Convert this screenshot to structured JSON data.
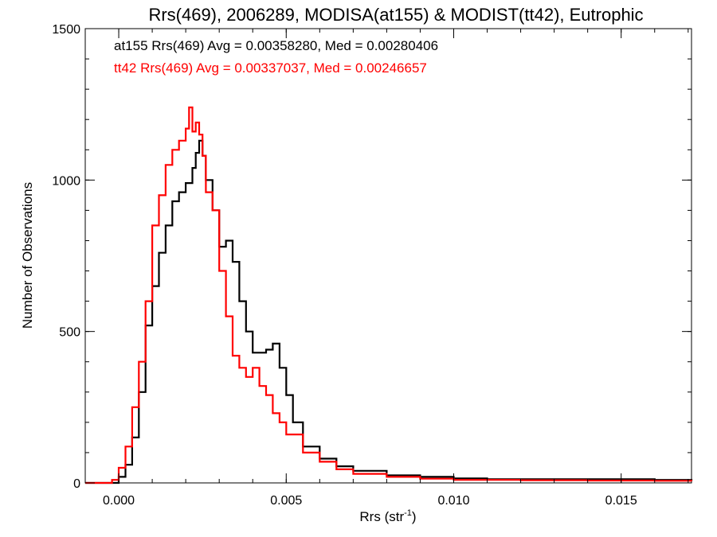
{
  "chart_data": {
    "type": "line",
    "title": "Rrs(469), 2006289, MODISA(at155) & MODIST(tt42), Eutrophic",
    "xlabel": "Rrs (str",
    "xlabel_sup": "-1",
    "xlabel_close": ")",
    "ylabel": "Number of Observations",
    "xlim": [
      -0.001,
      0.0171
    ],
    "ylim": [
      0,
      1500
    ],
    "xticks": [
      0.0,
      0.005,
      0.01,
      0.015
    ],
    "xtick_labels": [
      "0.000",
      "0.005",
      "0.010",
      "0.015"
    ],
    "yticks": [
      0,
      500,
      1000,
      1500
    ],
    "ytick_labels": [
      "0",
      "500",
      "1000",
      "1500"
    ],
    "grid": false,
    "legend_placement": "top-left",
    "annotations": [
      {
        "text": "at155 Rrs(469) Avg = 0.00358280, Med = 0.00280406",
        "color": "#000000"
      },
      {
        "text": "tt42 Rrs(469) Avg = 0.00337037, Med = 0.00246657",
        "color": "#ff0000"
      }
    ],
    "series": [
      {
        "name": "at155",
        "color": "#000000",
        "x": [
          -0.001,
          -0.0002,
          0.0,
          0.0002,
          0.0004,
          0.0006,
          0.0008,
          0.001,
          0.0012,
          0.0014,
          0.0016,
          0.0018,
          0.002,
          0.0022,
          0.0023,
          0.0024,
          0.0025,
          0.0026,
          0.0028,
          0.003,
          0.0032,
          0.0034,
          0.0036,
          0.0038,
          0.004,
          0.0042,
          0.0044,
          0.0046,
          0.0048,
          0.005,
          0.0052,
          0.0055,
          0.006,
          0.0065,
          0.007,
          0.008,
          0.009,
          0.01,
          0.011,
          0.012,
          0.013,
          0.014,
          0.015,
          0.016,
          0.0171
        ],
        "y": [
          0,
          0,
          20,
          60,
          150,
          300,
          520,
          650,
          760,
          850,
          930,
          960,
          990,
          1040,
          1090,
          1130,
          1080,
          1000,
          900,
          780,
          800,
          730,
          600,
          500,
          430,
          430,
          440,
          460,
          380,
          290,
          200,
          120,
          80,
          55,
          40,
          25,
          20,
          15,
          12,
          12,
          12,
          12,
          12,
          10,
          8
        ]
      },
      {
        "name": "tt42",
        "color": "#ff0000",
        "x": [
          -0.001,
          -0.0004,
          -0.0002,
          0.0,
          0.0002,
          0.0004,
          0.0006,
          0.0008,
          0.001,
          0.0012,
          0.0014,
          0.0016,
          0.0018,
          0.002,
          0.0021,
          0.0022,
          0.0023,
          0.0024,
          0.0025,
          0.0026,
          0.0028,
          0.003,
          0.0032,
          0.0034,
          0.0036,
          0.0038,
          0.004,
          0.0042,
          0.0044,
          0.0046,
          0.0048,
          0.005,
          0.0055,
          0.006,
          0.0065,
          0.007,
          0.008,
          0.009,
          0.01,
          0.011,
          0.012,
          0.013,
          0.014,
          0.015,
          0.016,
          0.0171
        ],
        "y": [
          0,
          0,
          10,
          50,
          120,
          250,
          400,
          600,
          850,
          950,
          1050,
          1100,
          1130,
          1170,
          1240,
          1160,
          1190,
          1150,
          1080,
          960,
          900,
          700,
          550,
          420,
          380,
          350,
          380,
          320,
          290,
          230,
          200,
          160,
          100,
          70,
          45,
          30,
          20,
          14,
          10,
          10,
          9,
          9,
          8,
          8,
          7,
          6
        ]
      }
    ]
  }
}
